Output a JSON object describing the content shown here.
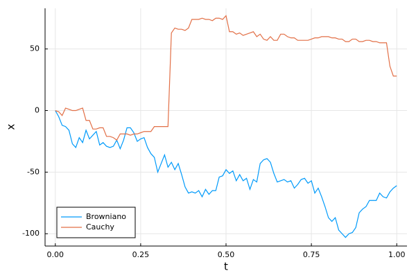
{
  "chart_data": {
    "type": "line",
    "xlabel": "t",
    "ylabel": "x",
    "x": [
      0,
      0.01,
      0.02,
      0.03,
      0.04,
      0.05,
      0.06,
      0.07,
      0.08,
      0.09,
      0.1,
      0.11,
      0.12,
      0.13,
      0.14,
      0.15,
      0.16,
      0.17,
      0.18,
      0.19,
      0.2,
      0.21,
      0.22,
      0.23,
      0.24,
      0.25,
      0.26,
      0.27,
      0.28,
      0.29,
      0.3,
      0.31,
      0.32,
      0.33,
      0.34,
      0.35,
      0.36,
      0.37,
      0.38,
      0.39,
      0.4,
      0.41,
      0.42,
      0.43,
      0.44,
      0.45,
      0.46,
      0.47,
      0.48,
      0.49,
      0.5,
      0.51,
      0.52,
      0.53,
      0.54,
      0.55,
      0.56,
      0.57,
      0.58,
      0.59,
      0.6,
      0.61,
      0.62,
      0.63,
      0.64,
      0.65,
      0.66,
      0.67,
      0.68,
      0.69,
      0.7,
      0.71,
      0.72,
      0.73,
      0.74,
      0.75,
      0.76,
      0.77,
      0.78,
      0.79,
      0.8,
      0.81,
      0.82,
      0.83,
      0.84,
      0.85,
      0.86,
      0.87,
      0.88,
      0.89,
      0.9,
      0.91,
      0.92,
      0.93,
      0.94,
      0.95,
      0.96,
      0.97,
      0.98,
      0.99,
      1
    ],
    "series": [
      {
        "name": "Browniano",
        "color": "#009afa",
        "values": [
          0,
          -5,
          -12,
          -13,
          -16,
          -27,
          -30,
          -22,
          -26,
          -16,
          -23,
          -20,
          -17,
          -28,
          -26,
          -29,
          -30,
          -29,
          -24,
          -31,
          -24,
          -14,
          -14,
          -18,
          -25,
          -23,
          -22,
          -30,
          -35,
          -38,
          -50,
          -43,
          -36,
          -46,
          -42,
          -48,
          -43,
          -52,
          -62,
          -67,
          -66,
          -67,
          -65,
          -70,
          -64,
          -68,
          -65,
          -65,
          -54,
          -53,
          -48,
          -51,
          -49,
          -57,
          -52,
          -57,
          -55,
          -64,
          -56,
          -58,
          -43,
          -40,
          -39,
          -42,
          -51,
          -58,
          -57,
          -56,
          -58,
          -57,
          -63,
          -60,
          -56,
          -55,
          -59,
          -57,
          -67,
          -63,
          -70,
          -78,
          -87,
          -90,
          -87,
          -97,
          -100,
          -103,
          -100,
          -99,
          -95,
          -83,
          -80,
          -78,
          -73,
          -73,
          -73,
          -67,
          -70,
          -71,
          -66,
          -63,
          -61
        ]
      },
      {
        "name": "Cauchy",
        "color": "#e26f46",
        "values": [
          0,
          -1,
          -4,
          2,
          1,
          0,
          0,
          1,
          2,
          -8,
          -8,
          -15,
          -15,
          -14,
          -14,
          -21,
          -21,
          -22,
          -24,
          -19,
          -19,
          -19,
          -20,
          -19,
          -19,
          -18,
          -17,
          -17,
          -17,
          -13,
          -13,
          -13,
          -13,
          -13,
          63,
          67,
          66,
          66,
          65,
          67,
          74,
          74,
          74,
          75,
          74,
          74,
          73,
          75,
          75,
          74,
          77,
          64,
          64,
          62,
          63,
          61,
          62,
          63,
          64,
          60,
          62,
          58,
          57,
          60,
          57,
          57,
          62,
          62,
          60,
          59,
          59,
          57,
          57,
          57,
          57,
          58,
          59,
          59,
          60,
          60,
          60,
          59,
          59,
          58,
          58,
          56,
          56,
          58,
          58,
          56,
          56,
          57,
          57,
          56,
          56,
          55,
          55,
          55,
          36,
          28,
          28
        ]
      }
    ],
    "xlim": [
      -0.03,
      1.03
    ],
    "ylim": [
      -110,
      83
    ],
    "xticks": [
      {
        "value": 0,
        "label": "0.00"
      },
      {
        "value": 0.25,
        "label": "0.25"
      },
      {
        "value": 0.5,
        "label": "0.50"
      },
      {
        "value": 0.75,
        "label": "0.75"
      },
      {
        "value": 1,
        "label": "1.00"
      }
    ],
    "yticks": [
      -100,
      -50,
      0,
      50
    ],
    "grid": true,
    "legend": "lower-left"
  }
}
